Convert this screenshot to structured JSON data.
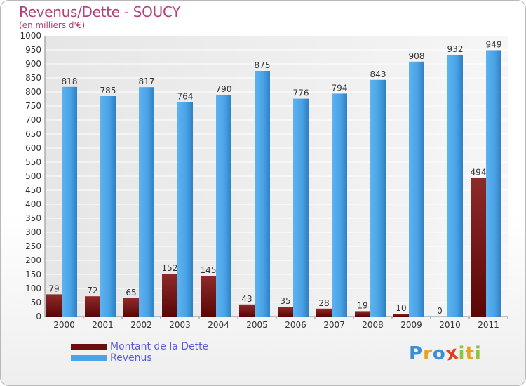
{
  "header": {
    "title": "Revenus/Dette - SOUCY",
    "subtitle": "(en milliers d'€)"
  },
  "chart_data": {
    "type": "bar",
    "title": "Revenus/Dette - SOUCY",
    "ylabel": "(en milliers d'€)",
    "xlabel": "",
    "ylim": [
      0,
      1000
    ],
    "yticks": [
      0,
      50,
      100,
      150,
      200,
      250,
      300,
      350,
      400,
      450,
      500,
      550,
      600,
      650,
      700,
      750,
      800,
      850,
      900,
      950,
      1000
    ],
    "grid": true,
    "categories": [
      "2000",
      "2001",
      "2002",
      "2003",
      "2004",
      "2005",
      "2006",
      "2007",
      "2008",
      "2009",
      "2010",
      "2011"
    ],
    "series": [
      {
        "name": "Montant de la Dette",
        "color": "#7a1414",
        "values": [
          79,
          72,
          65,
          152,
          145,
          43,
          35,
          28,
          19,
          10,
          0,
          494
        ]
      },
      {
        "name": "Revenus",
        "color": "#4aa3e6",
        "values": [
          818,
          785,
          817,
          764,
          790,
          875,
          776,
          794,
          843,
          908,
          932,
          949
        ]
      }
    ]
  },
  "legend": {
    "items": [
      {
        "label": "Montant de la Dette",
        "color": "#6b0f0f"
      },
      {
        "label": "Revenus",
        "color": "#4aa3e6"
      }
    ]
  },
  "logo": {
    "letters": [
      {
        "char": "P",
        "color": "#3a8fd6"
      },
      {
        "char": "r",
        "color": "#e8a020"
      },
      {
        "char": "o",
        "color": "#3a8fd6"
      },
      {
        "char": "x",
        "color": "#e04020"
      },
      {
        "char": "i",
        "color": "#8bc540"
      },
      {
        "char": "t",
        "color": "#e8a020"
      },
      {
        "char": "i",
        "color": "#8bc540"
      }
    ]
  }
}
